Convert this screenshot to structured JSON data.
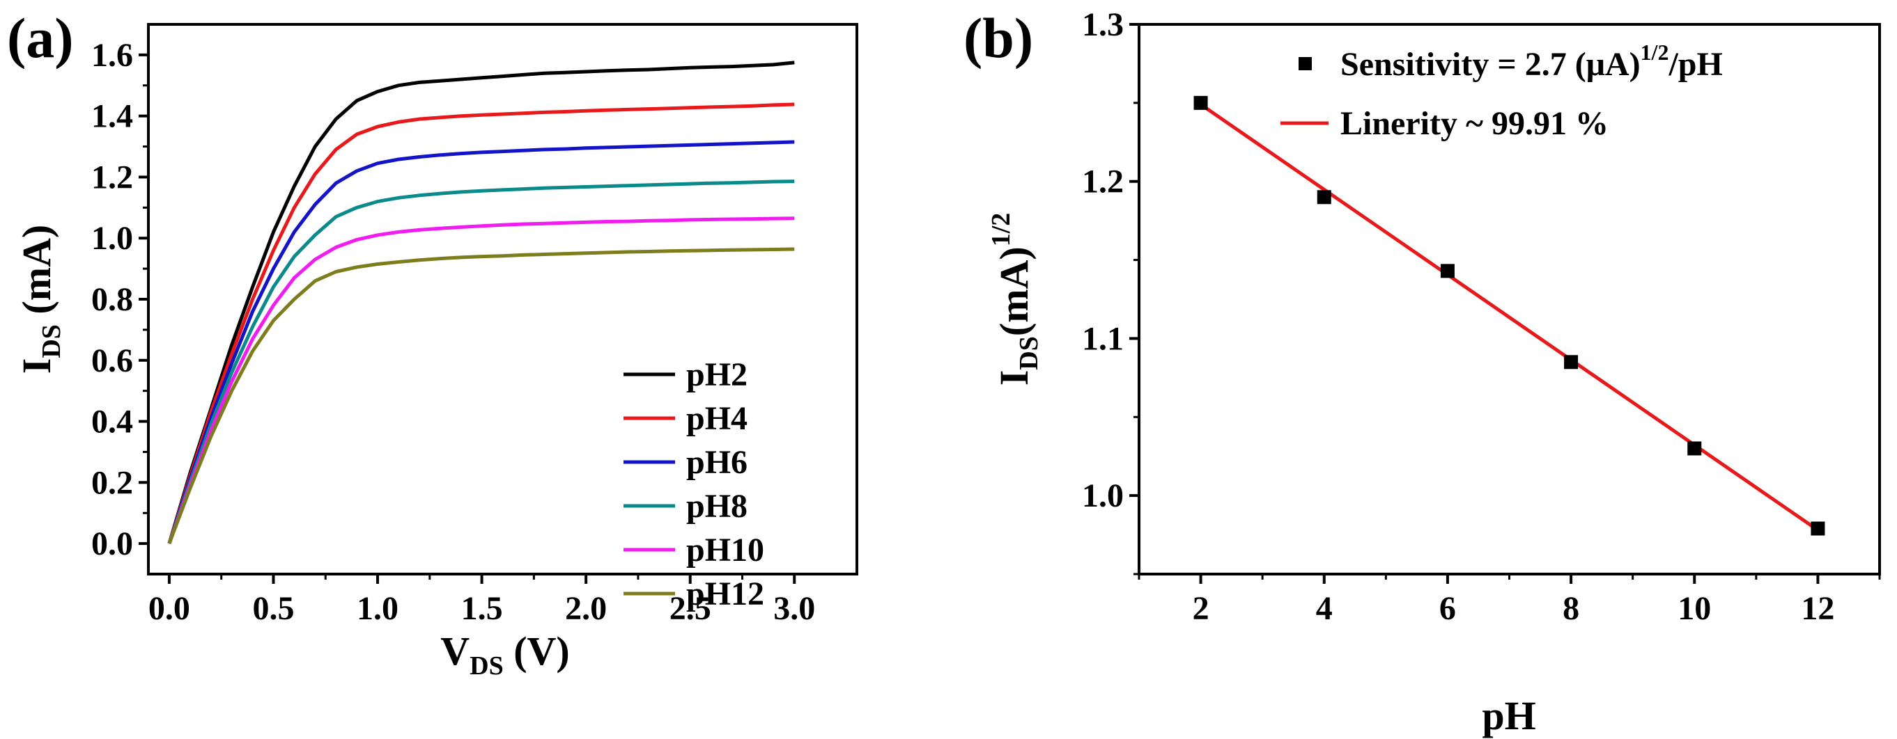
{
  "panel_a": {
    "label": "(a)",
    "xlabel_main": "V",
    "xlabel_sub": "DS",
    "xlabel_unit": " (V)",
    "ylabel_main": "I",
    "ylabel_sub": "DS",
    "ylabel_unit": " (mA)"
  },
  "panel_b": {
    "label": "(b)",
    "xlabel": "pH",
    "ylabel_main": "I",
    "ylabel_sub": "DS",
    "ylabel_unit": "(mA)",
    "ylabel_sup": "1/2",
    "legend_scatter_pre": "Sensitivity = 2.7 (μA)",
    "legend_scatter_sup": "1/2",
    "legend_scatter_post": "/pH",
    "legend_line": "Linerity ~ 99.91 %"
  },
  "colors": {
    "pH2": "#000000",
    "pH4": "#e8191b",
    "pH6": "#1313c8",
    "pH8": "#0a8a8a",
    "pH10": "#f01cf0",
    "pH12": "#7d7d1e",
    "fit": "#e8191b"
  },
  "chart_data": [
    {
      "type": "line",
      "title": "",
      "xlabel": "VDS (V)",
      "ylabel": "IDS (mA)",
      "xlim": [
        -0.1,
        3.3
      ],
      "ylim": [
        -0.1,
        1.7
      ],
      "xticks": [
        "0.0",
        "0.5",
        "1.0",
        "1.5",
        "2.0",
        "2.5",
        "3.0"
      ],
      "yticks": [
        "0.0",
        "0.2",
        "0.4",
        "0.6",
        "0.8",
        "1.0",
        "1.2",
        "1.4",
        "1.6"
      ],
      "legend_position": "bottom-right",
      "x": [
        0.0,
        0.1,
        0.2,
        0.3,
        0.4,
        0.5,
        0.6,
        0.7,
        0.8,
        0.9,
        1.0,
        1.1,
        1.2,
        1.3,
        1.4,
        1.5,
        1.6,
        1.7,
        1.8,
        1.9,
        2.0,
        2.1,
        2.2,
        2.3,
        2.4,
        2.5,
        2.6,
        2.7,
        2.8,
        2.9,
        3.0
      ],
      "series": [
        {
          "name": "pH2",
          "values": [
            0.0,
            0.23,
            0.44,
            0.65,
            0.84,
            1.02,
            1.17,
            1.3,
            1.39,
            1.45,
            1.48,
            1.5,
            1.51,
            1.515,
            1.52,
            1.525,
            1.53,
            1.535,
            1.54,
            1.542,
            1.545,
            1.548,
            1.55,
            1.552,
            1.555,
            1.558,
            1.56,
            1.562,
            1.565,
            1.568,
            1.575
          ]
        },
        {
          "name": "pH4",
          "values": [
            0.0,
            0.22,
            0.43,
            0.62,
            0.8,
            0.96,
            1.1,
            1.21,
            1.29,
            1.34,
            1.365,
            1.38,
            1.39,
            1.395,
            1.4,
            1.403,
            1.406,
            1.409,
            1.412,
            1.414,
            1.417,
            1.419,
            1.421,
            1.423,
            1.425,
            1.427,
            1.429,
            1.431,
            1.433,
            1.436,
            1.438
          ]
        },
        {
          "name": "pH6",
          "values": [
            0.0,
            0.21,
            0.41,
            0.59,
            0.76,
            0.9,
            1.02,
            1.11,
            1.18,
            1.22,
            1.245,
            1.258,
            1.266,
            1.272,
            1.277,
            1.281,
            1.284,
            1.287,
            1.29,
            1.292,
            1.295,
            1.297,
            1.299,
            1.301,
            1.303,
            1.305,
            1.307,
            1.309,
            1.311,
            1.313,
            1.315
          ]
        },
        {
          "name": "pH8",
          "values": [
            0.0,
            0.2,
            0.39,
            0.56,
            0.71,
            0.84,
            0.94,
            1.01,
            1.07,
            1.1,
            1.12,
            1.132,
            1.14,
            1.146,
            1.151,
            1.155,
            1.158,
            1.161,
            1.164,
            1.166,
            1.168,
            1.17,
            1.172,
            1.174,
            1.176,
            1.178,
            1.18,
            1.181,
            1.183,
            1.185,
            1.186
          ]
        },
        {
          "name": "pH10",
          "values": [
            0.0,
            0.19,
            0.37,
            0.53,
            0.67,
            0.78,
            0.87,
            0.93,
            0.97,
            0.995,
            1.01,
            1.02,
            1.027,
            1.032,
            1.036,
            1.04,
            1.043,
            1.046,
            1.048,
            1.05,
            1.052,
            1.054,
            1.055,
            1.057,
            1.058,
            1.06,
            1.061,
            1.062,
            1.063,
            1.064,
            1.065
          ]
        },
        {
          "name": "pH12",
          "values": [
            0.0,
            0.18,
            0.35,
            0.5,
            0.63,
            0.73,
            0.8,
            0.86,
            0.89,
            0.905,
            0.915,
            0.922,
            0.928,
            0.933,
            0.937,
            0.94,
            0.942,
            0.945,
            0.947,
            0.949,
            0.951,
            0.953,
            0.955,
            0.956,
            0.958,
            0.959,
            0.96,
            0.961,
            0.962,
            0.963,
            0.964
          ]
        }
      ]
    },
    {
      "type": "scatter",
      "title": "",
      "xlabel": "pH",
      "ylabel": "IDS (mA)1/2",
      "xlim": [
        1,
        13
      ],
      "ylim": [
        0.95,
        1.3
      ],
      "xticks": [
        "2",
        "4",
        "6",
        "8",
        "10",
        "12"
      ],
      "yticks": [
        "1.0",
        "1.1",
        "1.2",
        "1.3"
      ],
      "legend_position": "top-right",
      "series": [
        {
          "name": "Sensitivity = 2.7 (μA)1/2/pH",
          "x": [
            2,
            4,
            6,
            8,
            10,
            12
          ],
          "values": [
            1.25,
            1.19,
            1.143,
            1.085,
            1.03,
            0.979
          ]
        },
        {
          "name": "Linerity ~ 99.91 %",
          "fit": "linear",
          "x": [
            2,
            12
          ],
          "values": [
            1.249,
            0.978
          ]
        }
      ]
    }
  ]
}
